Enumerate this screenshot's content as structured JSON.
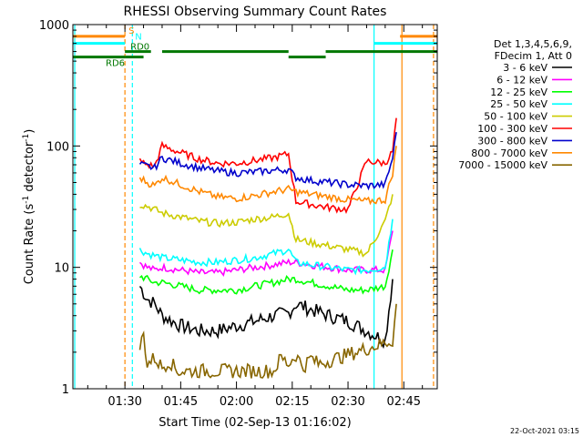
{
  "chart_data": {
    "type": "line",
    "title": "RHESSI Observing Summary Count Rates",
    "xlabel": "Start Time (02-Sep-13 01:16:02)",
    "ylabel_main": "Count Rate (s",
    "ylabel_sup1": "-1",
    "ylabel_mid": " detector",
    "ylabel_sup2": "-1",
    "ylabel_end": ")",
    "yscale": "log",
    "ylim": [
      1,
      1000
    ],
    "xlim_minutes": [
      1276,
      1374
    ],
    "x_ticks": [
      {
        "label": "01:30",
        "minutes": 1290
      },
      {
        "label": "01:45",
        "minutes": 1305
      },
      {
        "label": "02:00",
        "minutes": 1320
      },
      {
        "label": "02:15",
        "minutes": 1335
      },
      {
        "label": "02:30",
        "minutes": 1350
      },
      {
        "label": "02:45",
        "minutes": 1365
      }
    ],
    "y_ticks": [
      {
        "label": "1",
        "value": 1
      },
      {
        "label": "10",
        "value": 10
      },
      {
        "label": "100",
        "value": 100
      },
      {
        "label": "1000",
        "value": 1000
      }
    ],
    "legend_header": [
      "Det 1,3,4,5,6,9,",
      "FDecim 1, Att 0"
    ],
    "legend_placement": "right",
    "series": [
      {
        "name": "3 - 6 keV",
        "color": "#000000",
        "x": [
          1294,
          1296,
          1298,
          1300,
          1305,
          1310,
          1315,
          1320,
          1325,
          1330,
          1334,
          1336,
          1340,
          1345,
          1350,
          1355,
          1360,
          1362
        ],
        "y": [
          7,
          5.5,
          5,
          4,
          3.3,
          3,
          3,
          3.3,
          3.6,
          4,
          4.2,
          5,
          4.5,
          4,
          3.6,
          3,
          2.5,
          8
        ]
      },
      {
        "name": "6 - 12 keV",
        "color": "#ff00ff",
        "x": [
          1294,
          1296,
          1298,
          1300,
          1305,
          1310,
          1315,
          1320,
          1325,
          1330,
          1334,
          1336,
          1340,
          1345,
          1350,
          1355,
          1360,
          1362
        ],
        "y": [
          11,
          10,
          9.5,
          10,
          9.5,
          9,
          9,
          9.5,
          10,
          10.5,
          11,
          11,
          10.5,
          10,
          9.5,
          9.5,
          9.5,
          20
        ]
      },
      {
        "name": "12 - 25 keV",
        "color": "#00ff00",
        "x": [
          1294,
          1296,
          1298,
          1300,
          1305,
          1310,
          1315,
          1320,
          1325,
          1330,
          1334,
          1336,
          1340,
          1345,
          1350,
          1355,
          1360,
          1362
        ],
        "y": [
          8.5,
          8,
          7.5,
          7.5,
          7,
          6.5,
          6.5,
          6.5,
          7,
          7.5,
          8,
          8,
          7.5,
          7,
          6.5,
          6.5,
          7,
          14
        ]
      },
      {
        "name": "25 - 50 keV",
        "color": "#00ffff",
        "x": [
          1294,
          1296,
          1298,
          1300,
          1305,
          1310,
          1315,
          1320,
          1325,
          1330,
          1334,
          1336,
          1340,
          1345,
          1350,
          1355,
          1360,
          1362
        ],
        "y": [
          14,
          13,
          12.5,
          12,
          11.5,
          11,
          11,
          11.5,
          12,
          13,
          14,
          11,
          10.5,
          10,
          9.5,
          9.5,
          10,
          25
        ]
      },
      {
        "name": "50 - 100 keV",
        "color": "#cccc00",
        "x": [
          1294,
          1296,
          1298,
          1300,
          1305,
          1310,
          1315,
          1320,
          1325,
          1330,
          1334,
          1336,
          1340,
          1345,
          1350,
          1355,
          1360,
          1362
        ],
        "y": [
          33,
          32,
          30,
          28,
          26,
          24,
          23,
          23.5,
          25,
          26,
          28,
          17,
          16,
          15,
          14,
          13,
          24,
          40
        ]
      },
      {
        "name": "100 - 300 keV",
        "color": "#ff0000",
        "x": [
          1294,
          1296,
          1298,
          1300,
          1305,
          1310,
          1315,
          1320,
          1325,
          1330,
          1334,
          1336,
          1340,
          1345,
          1350,
          1355,
          1360,
          1362,
          1363
        ],
        "y": [
          75,
          70,
          68,
          100,
          88,
          78,
          72,
          72,
          76,
          80,
          86,
          35,
          33,
          31,
          30,
          75,
          72,
          90,
          170
        ]
      },
      {
        "name": "300 - 800 keV",
        "color": "#0000cc",
        "x": [
          1294,
          1296,
          1298,
          1300,
          1305,
          1310,
          1315,
          1320,
          1325,
          1330,
          1334,
          1336,
          1340,
          1345,
          1350,
          1355,
          1360,
          1362,
          1363
        ],
        "y": [
          70,
          68,
          66,
          80,
          72,
          66,
          62,
          60,
          61,
          63,
          64,
          55,
          52,
          50,
          48,
          47,
          48,
          80,
          130
        ]
      },
      {
        "name": "800 - 7000 keV",
        "color": "#ff8800",
        "x": [
          1294,
          1296,
          1298,
          1300,
          1305,
          1310,
          1315,
          1320,
          1325,
          1330,
          1334,
          1336,
          1340,
          1345,
          1350,
          1355,
          1360,
          1362,
          1363
        ],
        "y": [
          55,
          50,
          47,
          55,
          48,
          42,
          38,
          37,
          39,
          42,
          44,
          42,
          40,
          38,
          36,
          35,
          36,
          60,
          100
        ]
      },
      {
        "name": "7000 - 15000 keV",
        "color": "#886600",
        "x": [
          1294,
          1295,
          1296,
          1298,
          1300,
          1302,
          1304,
          1330,
          1332,
          1334,
          1336,
          1338,
          1340,
          1342,
          1362,
          1363
        ],
        "y": [
          2.2,
          2.8,
          1.6,
          1.8,
          1.5,
          1.7,
          1.4,
          1.4,
          1.8,
          1.6,
          1.9,
          1.5,
          1.8,
          1.6,
          2.5,
          5
        ]
      }
    ],
    "state_bars": [
      {
        "label": "S",
        "color": "#ff8800",
        "y": 800,
        "segments": [
          [
            1276,
            1290
          ],
          [
            1364,
            1374
          ]
        ]
      },
      {
        "label": "N",
        "color": "#00ffff",
        "y": 700,
        "segments": [
          [
            1276,
            1290
          ],
          [
            1357,
            1374
          ]
        ]
      },
      {
        "label": "RD0",
        "color": "#007700",
        "y": 600,
        "segments": [
          [
            1290,
            1297
          ],
          [
            1300,
            1334
          ],
          [
            1344,
            1374
          ]
        ]
      },
      {
        "label": "RD6",
        "color": "#007700",
        "y": 540,
        "segments": [
          [
            1276,
            1290
          ],
          [
            1290,
            1295
          ],
          [
            1334,
            1344
          ]
        ]
      }
    ],
    "vertical_markers": [
      {
        "x": 1276.5,
        "color": "#00ffff",
        "style": "solid"
      },
      {
        "x": 1290,
        "color": "#ff8800",
        "style": "dashed"
      },
      {
        "x": 1292,
        "color": "#00ffff",
        "style": "dashed"
      },
      {
        "x": 1357,
        "color": "#00ffff",
        "style": "solid"
      },
      {
        "x": 1364.5,
        "color": "#ff8800",
        "style": "solid"
      },
      {
        "x": 1373,
        "color": "#ff8800",
        "style": "dashed"
      }
    ],
    "timestamp": "22-Oct-2021 03:15"
  }
}
